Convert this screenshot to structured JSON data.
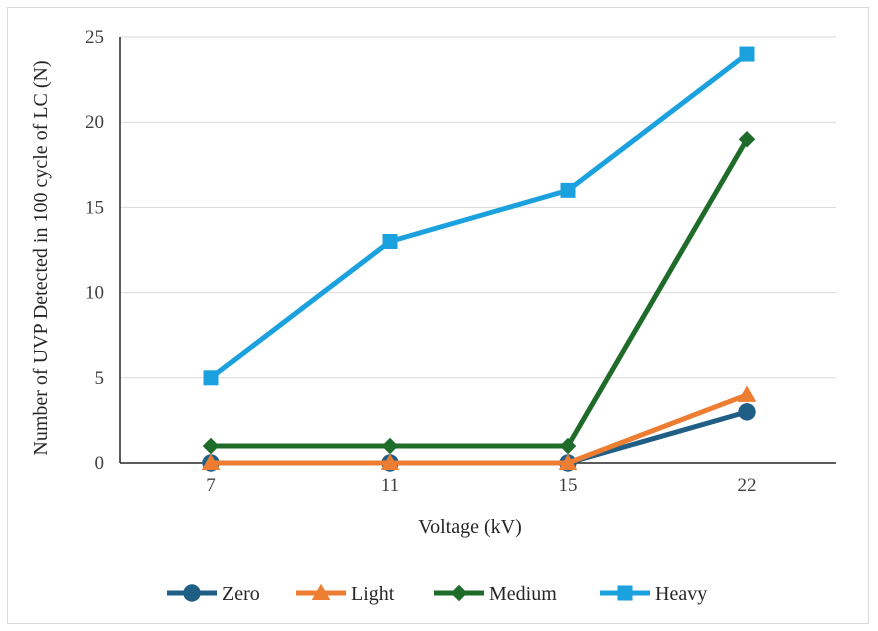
{
  "chart_data": {
    "type": "line",
    "title": "",
    "xlabel": "Voltage (kV)",
    "ylabel": "Number of UVP Detected in 100 cycle of LC (N)",
    "categories": [
      "7",
      "11",
      "15",
      "22"
    ],
    "ylim": [
      0,
      25
    ],
    "yticks": [
      0,
      5,
      10,
      15,
      20,
      25
    ],
    "grid": "horizontal",
    "legend_position": "bottom",
    "series": [
      {
        "name": "Zero",
        "color": "#1f5f86",
        "marker": "circle",
        "values": [
          0,
          0,
          0,
          3
        ]
      },
      {
        "name": "Light",
        "color": "#ed7d31",
        "marker": "triangle",
        "values": [
          0,
          0,
          0,
          4
        ]
      },
      {
        "name": "Medium",
        "color": "#1e6b2a",
        "marker": "diamond",
        "values": [
          1,
          1,
          1,
          19
        ]
      },
      {
        "name": "Heavy",
        "color": "#1ba1dd",
        "marker": "square",
        "values": [
          5,
          13,
          16,
          24
        ]
      }
    ]
  }
}
